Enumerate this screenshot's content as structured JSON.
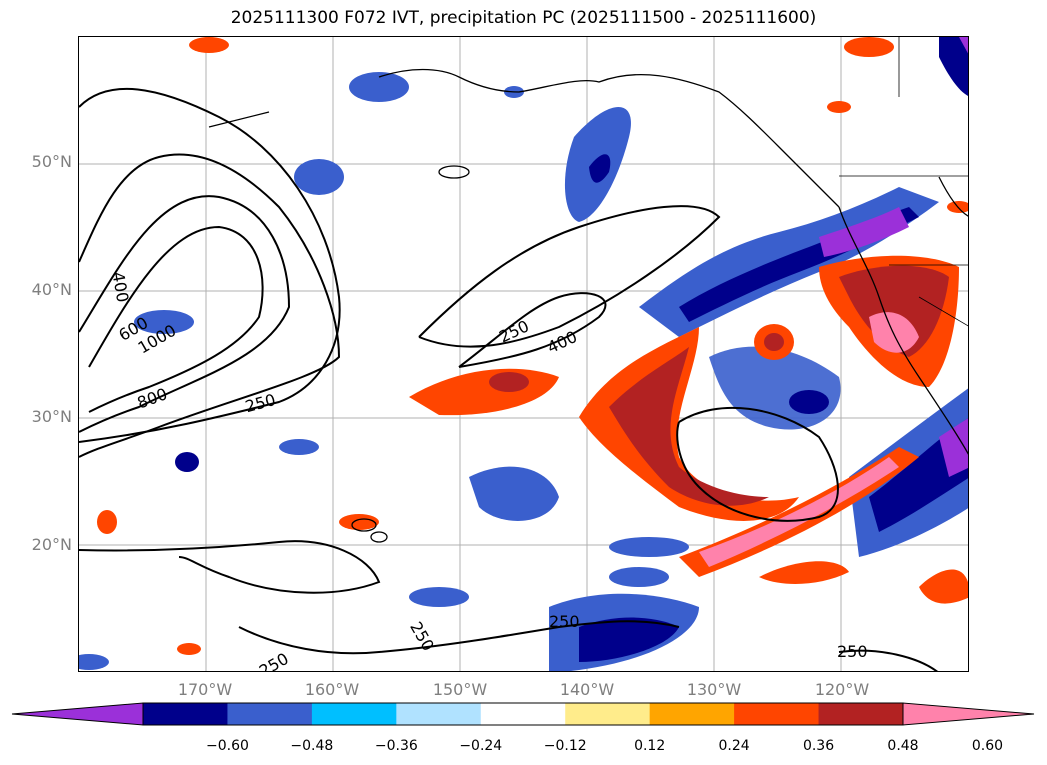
{
  "title": "2025111300 F072 IVT, precipitation PC (2025111500 - 2025111600)",
  "lat_labels": [
    "50°N",
    "40°N",
    "30°N",
    "20°N"
  ],
  "lon_labels": [
    "170°W",
    "160°W",
    "150°W",
    "140°W",
    "130°W",
    "120°W"
  ],
  "contour_labels": [
    "400",
    "600",
    "1000",
    "800",
    "250",
    "250",
    "400",
    "250",
    "250",
    "250",
    "250"
  ],
  "colorbar": {
    "ticks": [
      "−0.60",
      "−0.48",
      "−0.36",
      "−0.24",
      "−0.12",
      "0.12",
      "0.24",
      "0.36",
      "0.48",
      "0.60"
    ],
    "colors": [
      "#9b30d9",
      "#00008b",
      "#3a5fcd",
      "#00bfff",
      "#b0e2ff",
      "#ffffff",
      "#ffec8b",
      "#ffa500",
      "#ff4500",
      "#b22222",
      "#ff82ab"
    ]
  }
}
